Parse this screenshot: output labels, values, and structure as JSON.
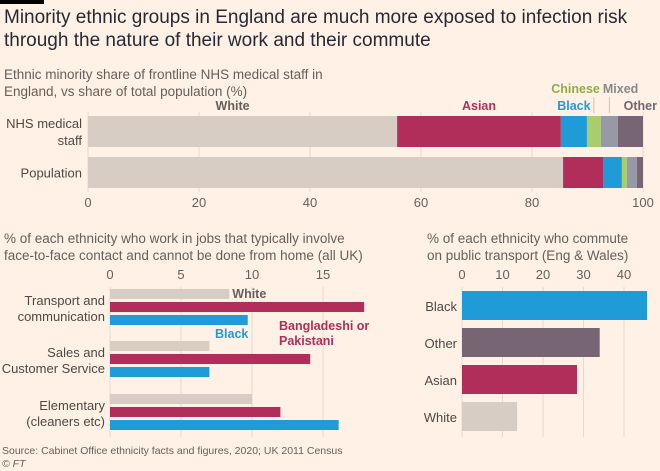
{
  "title": "Minority ethnic groups in England are much more exposed to infection risk through the nature of their work and their commute",
  "source": "Source: Cabinet Office ethnicity facts and figures, 2020; UK 2011 Census",
  "credit": "© FT",
  "colors": {
    "White": "#d7cdc4",
    "Asian": "#b22e5a",
    "Black": "#1f9bd7",
    "Chinese": "#a9cd6e",
    "Mixed": "#979aa6",
    "Other": "#776573",
    "grid": "#e6d9ce",
    "WhiteLabel": "#66605c",
    "ChineseLabel": "#8fae47",
    "MixedLabel": "#88898f"
  },
  "chart_data": [
    {
      "type": "bar",
      "stacked": true,
      "orientation": "horizontal",
      "subtitle": "Ethnic minority share of frontline NHS medical staff in England, vs share of total population (%)",
      "categories": [
        "NHS medical staff",
        "Population"
      ],
      "category_lines": [
        [
          "NHS medical",
          "staff"
        ],
        [
          "Population"
        ]
      ],
      "series": [
        {
          "name": "White",
          "values": [
            55.7,
            85.6
          ]
        },
        {
          "name": "Asian",
          "values": [
            29.5,
            7.2
          ]
        },
        {
          "name": "Black",
          "values": [
            4.7,
            3.4
          ]
        },
        {
          "name": "Chinese",
          "values": [
            2.5,
            0.9
          ]
        },
        {
          "name": "Mixed",
          "values": [
            3.1,
            1.8
          ]
        },
        {
          "name": "Other",
          "values": [
            4.5,
            1.1
          ]
        }
      ],
      "xlim": [
        0,
        100
      ],
      "xticks": [
        0,
        20,
        40,
        60,
        80,
        100
      ],
      "grid": true,
      "legend": "inline-top"
    },
    {
      "type": "bar",
      "orientation": "horizontal",
      "subtitle": "% of each ethnicity who work in jobs that typically involve face-to-face contact and cannot be done from home (all UK)",
      "subtitle_lines": [
        "% of each ethnicity who work in jobs that typically involve",
        "face-to-face contact and cannot be done from home (all UK)"
      ],
      "categories": [
        "Transport and communication",
        "Sales and Customer Service",
        "Elementary (cleaners etc)"
      ],
      "category_lines": [
        [
          "Transport and",
          "communication"
        ],
        [
          "Sales and",
          "Customer Service"
        ],
        [
          "Elementary",
          "(cleaners etc)"
        ]
      ],
      "series": [
        {
          "name": "White",
          "values": [
            8.4,
            7.0,
            10.0
          ]
        },
        {
          "name": "Bangladeshi or Pakistani",
          "values": [
            17.9,
            14.1,
            12.0
          ]
        },
        {
          "name": "Black",
          "values": [
            9.7,
            7.0,
            16.1
          ]
        }
      ],
      "series_labels": {
        "White": "White",
        "Bangladeshi or Pakistani": [
          "Bangladeshi or",
          "Pakistani"
        ],
        "Black": "Black"
      },
      "xlim": [
        0,
        18.5
      ],
      "xticks": [
        0,
        5,
        10,
        15
      ],
      "grid": true,
      "legend": "inline"
    },
    {
      "type": "bar",
      "orientation": "horizontal",
      "subtitle": "% of each ethnicity who commute on public transport (Eng & Wales)",
      "subtitle_lines": [
        "% of each ethnicity who commute",
        "on public transport (Eng & Wales)"
      ],
      "categories": [
        "Black",
        "Other",
        "Asian",
        "White"
      ],
      "values": [
        45.7,
        34.0,
        28.4,
        13.6
      ],
      "xlim": [
        0,
        46
      ],
      "xticks": [
        0,
        10,
        20,
        30,
        40
      ],
      "grid": true,
      "legend": "none"
    }
  ]
}
